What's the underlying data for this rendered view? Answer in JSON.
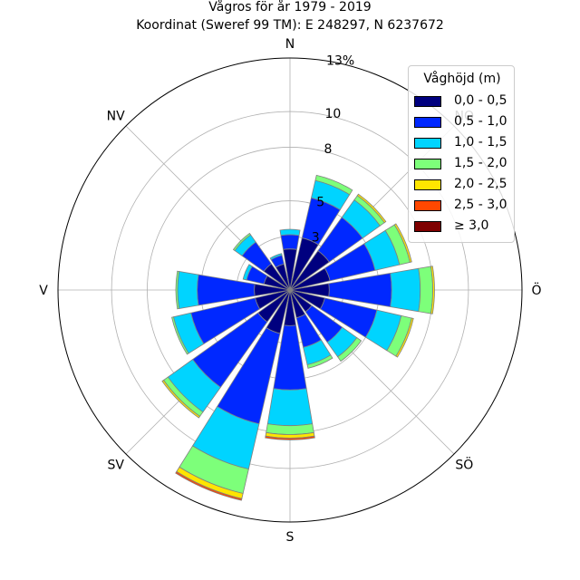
{
  "title": "Vågros för år 1979 - 2019",
  "subtitle": "Koordinat (Sweref 99 TM): E 248297, N 6237672",
  "chart_data": {
    "type": "polar-stacked-bar",
    "title": "Vågros för år 1979 - 2019",
    "subtitle": "Koordinat (Sweref 99 TM): E 248297, N 6237672",
    "unit": "%",
    "rmax": 13,
    "radial_ticks": [
      {
        "value": 3,
        "label": "3"
      },
      {
        "value": 5,
        "label": "5"
      },
      {
        "value": 8,
        "label": "8"
      },
      {
        "value": 10,
        "label": "10"
      },
      {
        "value": 13,
        "label": "13%"
      }
    ],
    "directions": [
      {
        "key": "N",
        "label": "N",
        "angle": 0
      },
      {
        "key": "NO",
        "label": "NO",
        "angle": 45
      },
      {
        "key": "O",
        "label": "Ö",
        "angle": 90
      },
      {
        "key": "SO",
        "label": "SÖ",
        "angle": 135
      },
      {
        "key": "S",
        "label": "S",
        "angle": 180
      },
      {
        "key": "SV",
        "label": "SV",
        "angle": 225
      },
      {
        "key": "V",
        "label": "V",
        "angle": 270
      },
      {
        "key": "NV",
        "label": "NV",
        "angle": 315
      }
    ],
    "legend_title": "Våghöjd (m)",
    "series": [
      {
        "name": "0,0 - 0,5",
        "color": "#00007f"
      },
      {
        "name": "0,5 - 1,0",
        "color": "#0028ff"
      },
      {
        "name": "1,0 - 1,5",
        "color": "#00d4ff"
      },
      {
        "name": "1,5 - 2,0",
        "color": "#7dff7a"
      },
      {
        "name": "2,0 - 2,5",
        "color": "#ffe500"
      },
      {
        "name": "2,5 - 3,0",
        "color": "#ff4800"
      },
      {
        "name": "≥ 3,0",
        "color": "#7f0000"
      }
    ],
    "sectors": [
      {
        "angle": 0,
        "values": [
          2.3,
          0.8,
          0.3,
          0.0,
          0.0,
          0.0,
          0.0
        ]
      },
      {
        "angle": 22.5,
        "values": [
          3.0,
          2.3,
          1.0,
          0.3,
          0.0,
          0.0,
          0.0
        ]
      },
      {
        "angle": 45,
        "values": [
          2.7,
          2.3,
          1.2,
          0.3,
          0.1,
          0.0,
          0.0
        ]
      },
      {
        "angle": 67.5,
        "values": [
          2.3,
          2.6,
          1.4,
          0.6,
          0.1,
          0.0,
          0.0
        ]
      },
      {
        "angle": 90,
        "values": [
          2.2,
          3.5,
          1.6,
          0.7,
          0.1,
          0.0,
          0.0
        ]
      },
      {
        "angle": 112.5,
        "values": [
          2.0,
          3.0,
          1.4,
          0.6,
          0.1,
          0.0,
          0.0
        ]
      },
      {
        "angle": 135,
        "values": [
          1.5,
          2.1,
          1.0,
          0.3,
          0.0,
          0.0,
          0.0
        ]
      },
      {
        "angle": 157.5,
        "values": [
          1.6,
          1.7,
          1.0,
          0.2,
          0.0,
          0.0,
          0.0
        ]
      },
      {
        "angle": 180,
        "values": [
          2.0,
          3.6,
          2.0,
          0.5,
          0.2,
          0.1,
          0.0
        ]
      },
      {
        "angle": 202.5,
        "values": [
          2.5,
          5.2,
          2.6,
          1.4,
          0.3,
          0.1,
          0.0
        ]
      },
      {
        "angle": 225,
        "values": [
          2.2,
          4.5,
          1.7,
          0.3,
          0.1,
          0.0,
          0.0
        ]
      },
      {
        "angle": 247.5,
        "values": [
          2.0,
          3.7,
          1.0,
          0.1,
          0.0,
          0.0,
          0.0
        ]
      },
      {
        "angle": 270,
        "values": [
          2.0,
          3.2,
          1.1,
          0.1,
          0.0,
          0.0,
          0.0
        ]
      },
      {
        "angle": 292.5,
        "values": [
          1.5,
          1.0,
          0.2,
          0.0,
          0.0,
          0.0,
          0.0
        ]
      },
      {
        "angle": 315,
        "values": [
          1.8,
          1.5,
          0.5,
          0.1,
          0.0,
          0.0,
          0.0
        ]
      },
      {
        "angle": 337.5,
        "values": [
          1.5,
          0.5,
          0.1,
          0.0,
          0.0,
          0.0,
          0.0
        ]
      }
    ]
  }
}
